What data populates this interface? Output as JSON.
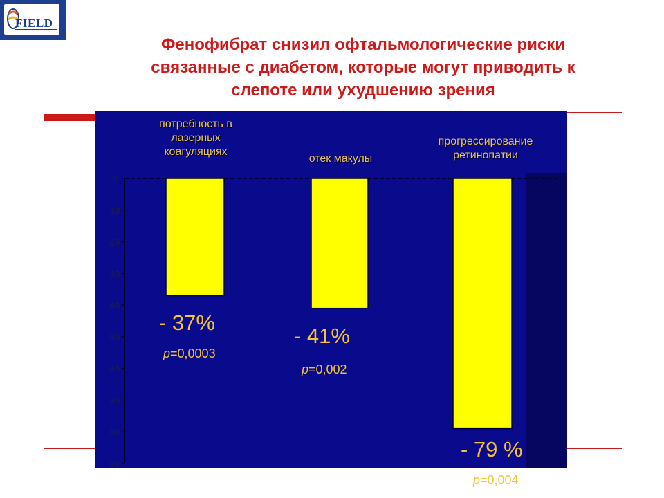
{
  "logo": {
    "text": "FIELD"
  },
  "title": "Фенофибрат снизил офтальмологические  риски\nсвязанные с диабетом, которые могут приводить к\nслепоте или ухудшению зрения",
  "colors": {
    "title": "#cc1a1a",
    "plot_background": "#0a0a8c",
    "plot_background_right": "#060660",
    "bars": "#ffff00",
    "labels": "#f2c23a",
    "rule": "#cc1a1a"
  },
  "chart_data": {
    "type": "bar",
    "orientation": "vertical-inverted",
    "y_axis": {
      "min": 0,
      "max": 90,
      "ticks": [
        0,
        10,
        20,
        30,
        40,
        50,
        60,
        70,
        80,
        90
      ],
      "inverted": true
    },
    "categories": [
      {
        "label": "потребность в\nлазерных\nкоагуляциях",
        "value": 37,
        "value_label": "- 37%",
        "p_prefix": "p",
        "p_value": "=0,0003"
      },
      {
        "label": "отек макулы",
        "value": 41,
        "value_label": "- 41%",
        "p_prefix": "p",
        "p_value": "=0,002"
      },
      {
        "label": "прогрессирование\nретинопатии",
        "value": 79,
        "value_label": "- 79 %",
        "p_prefix": "p",
        "p_value": "=0,004"
      }
    ]
  }
}
